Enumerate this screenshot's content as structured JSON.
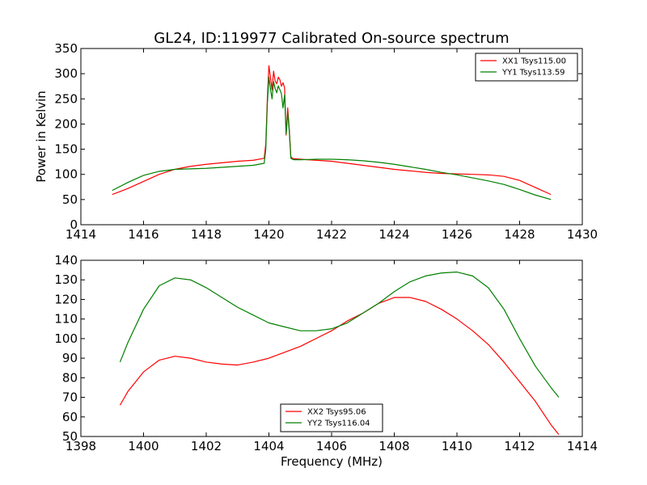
{
  "figure_title": "GL24, ID:119977 Calibrated On-source spectrum",
  "chart_data": [
    {
      "type": "line",
      "title": "GL24, ID:119977 Calibrated On-source spectrum",
      "xlabel": "",
      "ylabel": "Power in Kelvin",
      "xlim": [
        1414,
        1430
      ],
      "ylim": [
        0,
        350
      ],
      "xticks": [
        1414,
        1416,
        1418,
        1420,
        1422,
        1424,
        1426,
        1428,
        1430
      ],
      "yticks": [
        0,
        50,
        100,
        150,
        200,
        250,
        300,
        350
      ],
      "legend_position": "upper-right",
      "grid": false,
      "series": [
        {
          "name": "XX1 Tsys115.00",
          "color": "#ff0000",
          "x": [
            1415.0,
            1415.5,
            1416.0,
            1416.5,
            1417.0,
            1417.5,
            1418.0,
            1418.5,
            1419.0,
            1419.5,
            1419.85,
            1419.9,
            1419.95,
            1420.0,
            1420.05,
            1420.1,
            1420.15,
            1420.2,
            1420.25,
            1420.3,
            1420.35,
            1420.4,
            1420.45,
            1420.5,
            1420.55,
            1420.6,
            1420.65,
            1420.7,
            1420.75,
            1420.8,
            1421.0,
            1421.5,
            1422.0,
            1422.5,
            1423.0,
            1423.5,
            1424.0,
            1424.5,
            1425.0,
            1425.5,
            1426.0,
            1426.5,
            1427.0,
            1427.5,
            1428.0,
            1428.5,
            1429.0
          ],
          "y": [
            60,
            72,
            86,
            100,
            110,
            116,
            120,
            123,
            126,
            128,
            132,
            160,
            250,
            316,
            292,
            268,
            305,
            285,
            280,
            293,
            288,
            275,
            282,
            272,
            178,
            232,
            190,
            135,
            132,
            131,
            130,
            128,
            126,
            122,
            118,
            114,
            110,
            107,
            104,
            102,
            101,
            100,
            99,
            96,
            88,
            74,
            60
          ]
        },
        {
          "name": "YY1 Tsys113.59",
          "color": "#008000",
          "x": [
            1415.0,
            1415.5,
            1416.0,
            1416.5,
            1417.0,
            1417.5,
            1418.0,
            1418.5,
            1419.0,
            1419.5,
            1419.85,
            1419.9,
            1419.95,
            1420.0,
            1420.05,
            1420.1,
            1420.15,
            1420.2,
            1420.25,
            1420.3,
            1420.35,
            1420.4,
            1420.45,
            1420.5,
            1420.55,
            1420.6,
            1420.65,
            1420.7,
            1420.75,
            1420.8,
            1421.0,
            1421.5,
            1422.0,
            1422.5,
            1423.0,
            1423.5,
            1424.0,
            1424.5,
            1425.0,
            1425.5,
            1426.0,
            1426.5,
            1427.0,
            1427.5,
            1428.0,
            1428.5,
            1429.0
          ],
          "y": [
            68,
            84,
            98,
            106,
            110,
            111,
            112,
            114,
            116,
            118,
            122,
            150,
            240,
            293,
            270,
            250,
            284,
            270,
            262,
            276,
            268,
            260,
            232,
            258,
            180,
            222,
            185,
            132,
            130,
            129,
            129,
            130,
            130,
            129,
            127,
            124,
            120,
            115,
            110,
            104,
            99,
            93,
            87,
            80,
            70,
            59,
            50
          ]
        }
      ]
    },
    {
      "type": "line",
      "title": "",
      "xlabel": "Frequency (MHz)",
      "ylabel": "",
      "xlim": [
        1398,
        1414
      ],
      "ylim": [
        50,
        140
      ],
      "xticks": [
        1398,
        1400,
        1402,
        1404,
        1406,
        1408,
        1410,
        1412,
        1414
      ],
      "yticks": [
        50,
        60,
        70,
        80,
        90,
        100,
        110,
        120,
        130,
        140
      ],
      "legend_position": "lower-center",
      "grid": false,
      "series": [
        {
          "name": "XX2 Tsys95.06",
          "color": "#ff0000",
          "x": [
            1399.25,
            1399.5,
            1400.0,
            1400.5,
            1401.0,
            1401.5,
            1402.0,
            1402.5,
            1403.0,
            1403.5,
            1404.0,
            1404.5,
            1405.0,
            1405.5,
            1406.0,
            1406.5,
            1407.0,
            1407.5,
            1408.0,
            1408.5,
            1409.0,
            1409.5,
            1410.0,
            1410.5,
            1411.0,
            1411.5,
            1412.0,
            1412.5,
            1413.0,
            1413.25
          ],
          "y": [
            66,
            73,
            83,
            89,
            91,
            90,
            88,
            87,
            86.5,
            88,
            90,
            93,
            96,
            100,
            104,
            109,
            113,
            118,
            121,
            121,
            119,
            115,
            110,
            104,
            97,
            88,
            78,
            68,
            56,
            51
          ]
        },
        {
          "name": "YY2 Tsys116.04",
          "color": "#008000",
          "x": [
            1399.25,
            1399.5,
            1400.0,
            1400.5,
            1401.0,
            1401.5,
            1402.0,
            1402.5,
            1403.0,
            1403.5,
            1404.0,
            1404.5,
            1405.0,
            1405.5,
            1406.0,
            1406.5,
            1407.0,
            1407.5,
            1408.0,
            1408.5,
            1409.0,
            1409.5,
            1410.0,
            1410.5,
            1411.0,
            1411.5,
            1412.0,
            1412.5,
            1413.0,
            1413.25
          ],
          "y": [
            88,
            98,
            115,
            127,
            131,
            130,
            126,
            121,
            116,
            112,
            108,
            106,
            104,
            104,
            105,
            108,
            113,
            118,
            124,
            129,
            132,
            133.5,
            134,
            132,
            126,
            115,
            100,
            86,
            75,
            70
          ]
        }
      ]
    }
  ]
}
